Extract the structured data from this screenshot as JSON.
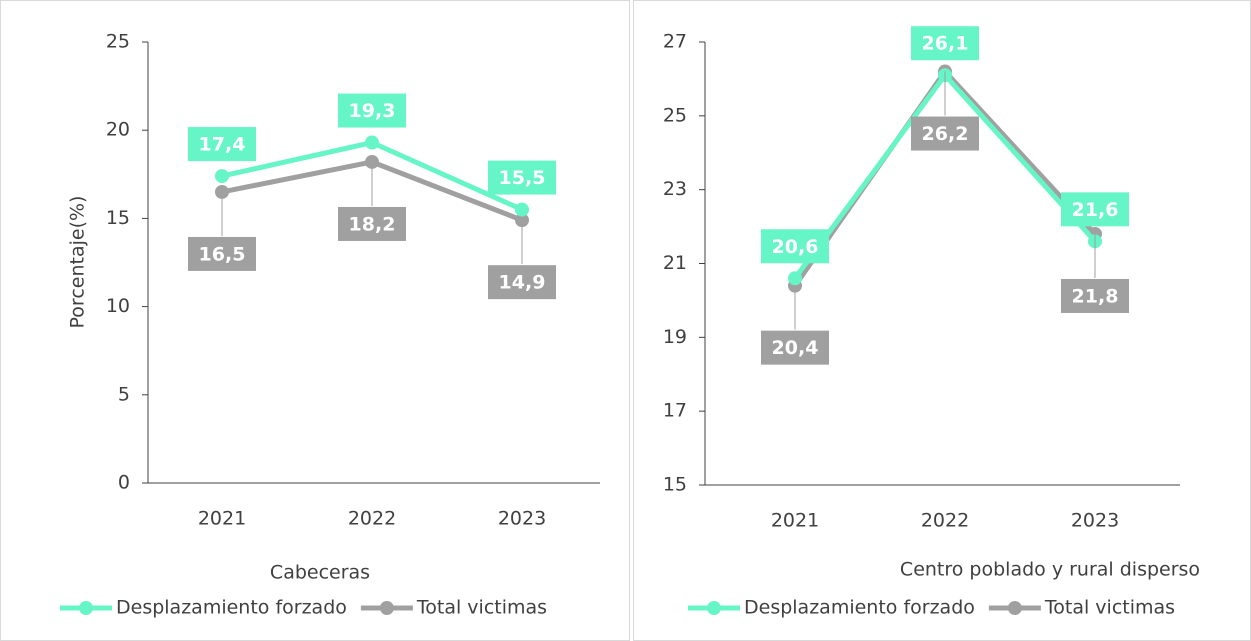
{
  "chart_data": [
    {
      "type": "line",
      "ylabel": "Porcentaje(%)",
      "xlabel": "Cabeceras",
      "categories": [
        "2021",
        "2022",
        "2023"
      ],
      "series": [
        {
          "name": "Desplazamiento forzado",
          "color": "#66f5c6",
          "values": [
            17.4,
            19.3,
            15.5
          ],
          "value_labels": [
            "17,4",
            "19,3",
            "15,5"
          ]
        },
        {
          "name": "Total victimas",
          "color": "#a0a0a0",
          "values": [
            16.5,
            18.2,
            14.9
          ],
          "value_labels": [
            "16,5",
            "18,2",
            "14,9"
          ]
        }
      ],
      "ylim": [
        0,
        25
      ],
      "yticks": [
        0,
        5,
        10,
        15,
        20,
        25
      ],
      "legend": "bottom"
    },
    {
      "type": "line",
      "xlabel": "Centro poblado y rural disperso",
      "categories": [
        "2021",
        "2022",
        "2023"
      ],
      "series": [
        {
          "name": "Desplazamiento forzado",
          "color": "#66f5c6",
          "values": [
            20.6,
            26.1,
            21.6
          ],
          "value_labels": [
            "20,6",
            "26,1",
            "21,6"
          ]
        },
        {
          "name": "Total victimas",
          "color": "#a0a0a0",
          "values": [
            20.4,
            26.2,
            21.8
          ],
          "value_labels": [
            "20,4",
            "26,2",
            "21,8"
          ]
        }
      ],
      "ylim": [
        15,
        27
      ],
      "yticks": [
        15,
        17,
        19,
        21,
        23,
        25,
        27
      ],
      "legend": "bottom"
    }
  ]
}
